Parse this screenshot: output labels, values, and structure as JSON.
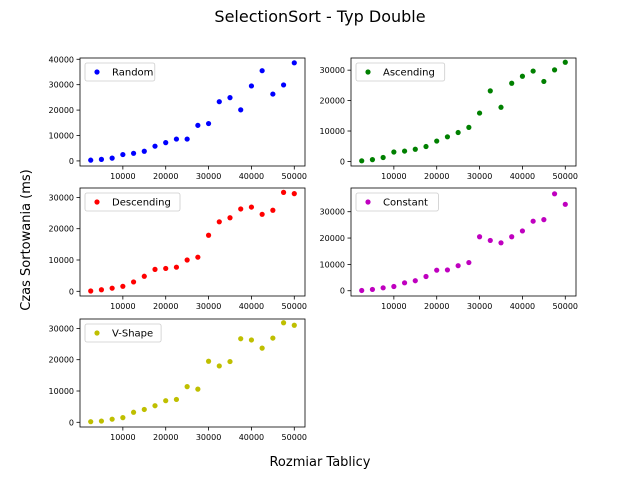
{
  "figure": {
    "title": "SelectionSort - Typ Double",
    "xlabel": "Rozmiar Tablicy",
    "ylabel": "Czas Sortowania (ms)"
  },
  "chart_data": [
    {
      "type": "scatter",
      "name": "Random",
      "color": "#0000ff",
      "legend": "top-left",
      "xlim": [
        0,
        52500
      ],
      "ylim": [
        -2000,
        40500
      ],
      "xticks": [
        10000,
        20000,
        30000,
        40000,
        50000
      ],
      "yticks": [
        0,
        10000,
        20000,
        30000,
        40000
      ],
      "x": [
        2500,
        5000,
        7500,
        10000,
        12500,
        15000,
        17500,
        20000,
        22500,
        25000,
        27500,
        30000,
        32500,
        35000,
        37500,
        40000,
        42500,
        45000,
        47500,
        50000
      ],
      "y": [
        300,
        600,
        1100,
        2500,
        3000,
        3800,
        5800,
        7200,
        8600,
        8600,
        14000,
        14700,
        23300,
        24900,
        20100,
        29500,
        35500,
        26300,
        29900,
        38600
      ]
    },
    {
      "type": "scatter",
      "name": "Ascending",
      "color": "#008000",
      "legend": "top-left",
      "xlim": [
        0,
        52500
      ],
      "ylim": [
        -1500,
        34000
      ],
      "xticks": [
        10000,
        20000,
        30000,
        40000,
        50000
      ],
      "yticks": [
        0,
        10000,
        20000,
        30000
      ],
      "x": [
        2500,
        5000,
        7500,
        10000,
        12500,
        15000,
        17500,
        20000,
        22500,
        25000,
        27500,
        30000,
        32500,
        35000,
        37500,
        40000,
        42500,
        45000,
        47500,
        50000
      ],
      "y": [
        200,
        600,
        1300,
        3100,
        3400,
        4000,
        4900,
        6700,
        8100,
        9500,
        11200,
        15900,
        23200,
        17800,
        25700,
        28000,
        29700,
        26300,
        30100,
        32600
      ]
    },
    {
      "type": "scatter",
      "name": "Descending",
      "color": "#ff0000",
      "legend": "top-left",
      "xlim": [
        0,
        52500
      ],
      "ylim": [
        -1500,
        33000
      ],
      "xticks": [
        10000,
        20000,
        30000,
        40000,
        50000
      ],
      "yticks": [
        0,
        10000,
        20000,
        30000
      ],
      "x": [
        2500,
        5000,
        7500,
        10000,
        12500,
        15000,
        17500,
        20000,
        22500,
        25000,
        27500,
        30000,
        32500,
        35000,
        37500,
        40000,
        42500,
        45000,
        47500,
        50000
      ],
      "y": [
        100,
        500,
        1000,
        1600,
        3000,
        4800,
        7000,
        7300,
        7700,
        10000,
        10900,
        17900,
        22200,
        23500,
        26300,
        26900,
        24600,
        25900,
        31600,
        31200
      ]
    },
    {
      "type": "scatter",
      "name": "Constant",
      "color": "#bf00bf",
      "legend": "top-left",
      "xlim": [
        0,
        52500
      ],
      "ylim": [
        -2000,
        39000
      ],
      "xticks": [
        10000,
        20000,
        30000,
        40000,
        50000
      ],
      "yticks": [
        0,
        10000,
        20000,
        30000
      ],
      "x": [
        2500,
        5000,
        7500,
        10000,
        12500,
        15000,
        17500,
        20000,
        22500,
        25000,
        27500,
        30000,
        32500,
        35000,
        37500,
        40000,
        42500,
        45000,
        47500,
        50000
      ],
      "y": [
        100,
        500,
        1100,
        1600,
        3000,
        3800,
        5400,
        7800,
        7900,
        9500,
        10700,
        20500,
        19100,
        18200,
        20500,
        22700,
        26400,
        27000,
        36800,
        32800
      ]
    },
    {
      "type": "scatter",
      "name": "V-Shape",
      "color": "#bfbf00",
      "legend": "top-left",
      "xlim": [
        0,
        52500
      ],
      "ylim": [
        -1500,
        33000
      ],
      "xticks": [
        10000,
        20000,
        30000,
        40000,
        50000
      ],
      "yticks": [
        0,
        10000,
        20000,
        30000
      ],
      "x": [
        2500,
        5000,
        7500,
        10000,
        12500,
        15000,
        17500,
        20000,
        22500,
        25000,
        27500,
        30000,
        32500,
        35000,
        37500,
        40000,
        42500,
        45000,
        47500,
        50000
      ],
      "y": [
        200,
        400,
        1000,
        1500,
        3200,
        4100,
        5300,
        6900,
        7300,
        11400,
        10600,
        19500,
        18000,
        19400,
        26700,
        26300,
        23700,
        26900,
        31800,
        31000
      ]
    }
  ]
}
